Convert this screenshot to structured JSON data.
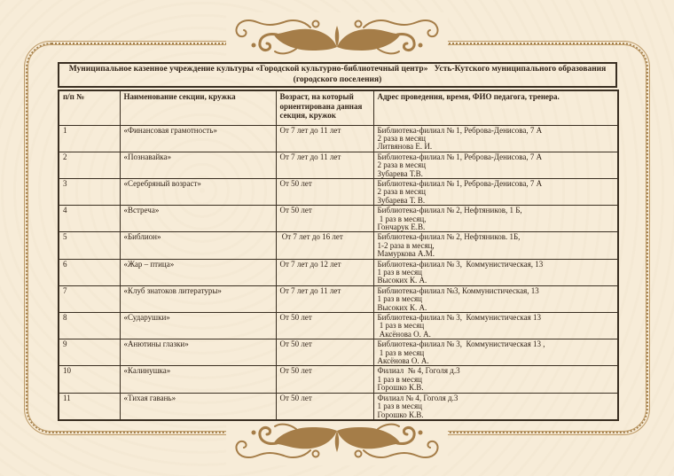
{
  "page": {
    "bg_color": "#f7ecd8",
    "ornament_color": "#a57d48",
    "frame_line_color": "#bd9a67",
    "table_border_color": "#3a2f22",
    "text_color": "#33251a"
  },
  "document": {
    "title": "Муниципальное казенное учреждение культуры «Городской культурно-библиотечный центр»   Усть-Кутского муниципального образования\n(городского поселения)",
    "columns": [
      "п/п №",
      "Наименование секции, кружка",
      "Возраст, на который ориентирована данная секция, кружок",
      "Адрес проведения, время, ФИО педагога, тренера."
    ],
    "rows": [
      {
        "num": "1",
        "name": "«Финансовая грамотность»",
        "age": "От 7 лет до 11 лет",
        "address": "Библиотека-филиал № 1, Реброва-Денисова, 7 А\n2 раза в месяц\nЛитвянова Е. И."
      },
      {
        "num": "2",
        "name": "«Познавайка»",
        "age": "От 7 лет до 11 лет",
        "address": "Библиотека-филиал № 1, Реброва-Денисова, 7 А\n2 раза в месяц\nЗубарева Т.В."
      },
      {
        "num": "3",
        "name": "«Серебряный возраст»",
        "age": "От 50 лет",
        "address": "Библиотека-филиал № 1, Реброва-Денисова, 7 А\n2 раза в месяц\nЗубарева Т. В."
      },
      {
        "num": "4",
        "name": "«Встреча»",
        "age": "От 50 лет",
        "address": "Библиотека-филиал № 2, Нефтяников, 1 Б,\n 1 раз в месяц,\nГончарук Е.В."
      },
      {
        "num": "5",
        "name": "«Библион»",
        "age": " От 7 лет до 16 лет",
        "address": "Библиотека-филиал № 2, Нефтяников. 1Б,\n1-2 раза в месяц,\nМамуркова А.М."
      },
      {
        "num": "6",
        "name": "«Жар – птица»",
        "age": "От 7 лет до 12 лет",
        "address": "Библиотека-филиал № 3,  Коммунистическая, 13\n1 раз в месяц\nВысоких К. А."
      },
      {
        "num": "7",
        "name": "«Клуб знатоков литературы»",
        "age": "От 7 лет до 11 лет",
        "address": "Библиотека-филиал №3, Коммунистическая, 13\n1 раз в месяц\nВысоких К. А."
      },
      {
        "num": "8",
        "name": "«Сударушки»",
        "age": "От 50 лет",
        "address": "Библиотека-филиал № 3,  Коммунистическая 13\n 1 раз в месяц\n Аксёнова О. А."
      },
      {
        "num": "9",
        "name": "«Анютины глазки»",
        "age": "От 50 лет",
        "address": "Библиотека-филиал № 3,  Коммунистическая 13 ,\n 1 раз в месяц\nАксёнова О. А."
      },
      {
        "num": "10",
        "name": "«Калинушка»",
        "age": "От 50 лет",
        "address": "Филиал  № 4, Гоголя д.3\n1 раз в месяц\nГорошко К.В."
      },
      {
        "num": "11",
        "name": "«Тихая гавань»",
        "age": "От 50 лет",
        "address": "Филиал № 4, Гоголя д.3\n1 раз в месяц\nГорошко К.В."
      }
    ]
  }
}
